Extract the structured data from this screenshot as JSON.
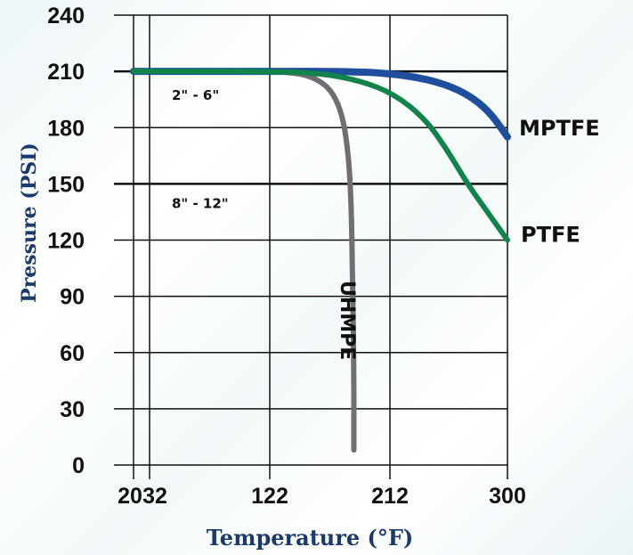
{
  "chart_data": {
    "type": "line",
    "xlabel": "Temperature (°F)",
    "ylabel": "Pressure (PSI)",
    "xlim": [
      20,
      300
    ],
    "ylim": [
      0,
      240
    ],
    "xticks": [
      20,
      32,
      122,
      212,
      300
    ],
    "yticks": [
      0,
      30,
      60,
      90,
      120,
      150,
      180,
      210,
      240
    ],
    "grid": true,
    "annotations": [
      "2\" - 6\"",
      "8\" - 12\""
    ],
    "series": [
      {
        "name": "MPTFE",
        "color": "#1f4e9c",
        "points": [
          [
            20,
            210
          ],
          [
            122,
            210
          ],
          [
            180,
            210
          ],
          [
            210,
            209
          ],
          [
            240,
            206
          ],
          [
            265,
            200
          ],
          [
            285,
            190
          ],
          [
            300,
            175
          ]
        ]
      },
      {
        "name": "PTFE",
        "color": "#12844a",
        "points": [
          [
            20,
            210
          ],
          [
            122,
            210
          ],
          [
            160,
            209
          ],
          [
            190,
            205
          ],
          [
            215,
            198
          ],
          [
            238,
            185
          ],
          [
            255,
            168
          ],
          [
            270,
            150
          ],
          [
            285,
            135
          ],
          [
            300,
            120
          ]
        ]
      },
      {
        "name": "UHMPE",
        "color": "#6f6f73",
        "points": [
          [
            20,
            210
          ],
          [
            122,
            210
          ],
          [
            145,
            209
          ],
          [
            160,
            205
          ],
          [
            170,
            198
          ],
          [
            177,
            185
          ],
          [
            181,
            165
          ],
          [
            183,
            140
          ],
          [
            184,
            100
          ],
          [
            185,
            50
          ],
          [
            185,
            8
          ]
        ]
      }
    ]
  }
}
